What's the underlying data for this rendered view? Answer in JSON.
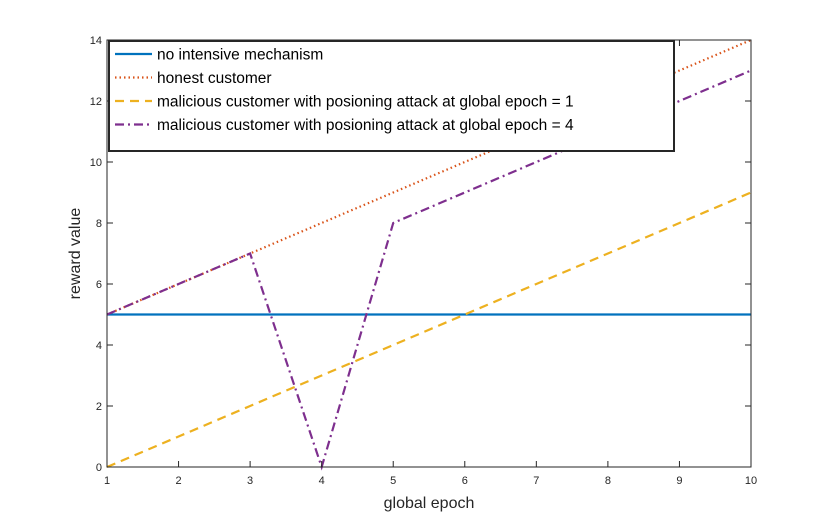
{
  "chart_data": {
    "type": "line",
    "title": "",
    "xlabel": "global epoch",
    "ylabel": "reward value",
    "xlim": [
      1,
      10
    ],
    "ylim": [
      0,
      14
    ],
    "xticks": [
      1,
      2,
      3,
      4,
      5,
      6,
      7,
      8,
      9,
      10
    ],
    "yticks": [
      0,
      2,
      4,
      6,
      8,
      10,
      12,
      14
    ],
    "grid": false,
    "legend_position": "top-left",
    "x": [
      1,
      2,
      3,
      4,
      5,
      6,
      7,
      8,
      9,
      10
    ],
    "series": [
      {
        "name": "no intensive mechanism",
        "color": "#0072BD",
        "style": "solid",
        "values": [
          5,
          5,
          5,
          5,
          5,
          5,
          5,
          5,
          5,
          5
        ]
      },
      {
        "name": "honest customer",
        "color": "#D95319",
        "style": "dotted",
        "values": [
          5,
          6,
          7,
          8,
          9,
          10,
          11,
          12,
          13,
          14
        ]
      },
      {
        "name": "malicious customer with posioning attack at global epoch = 1",
        "color": "#EDB120",
        "style": "dashed",
        "values": [
          0,
          1,
          2,
          3,
          4,
          5,
          6,
          7,
          8,
          9
        ]
      },
      {
        "name": "malicious customer with posioning attack at global epoch = 4",
        "color": "#7E2F8E",
        "style": "dashdot",
        "values": [
          5,
          6,
          7,
          0,
          8,
          9,
          10,
          11,
          12,
          13
        ]
      }
    ]
  }
}
